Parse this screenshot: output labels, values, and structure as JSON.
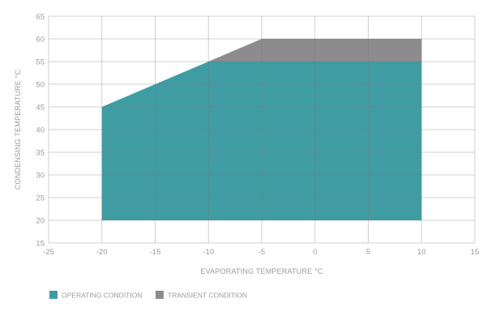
{
  "chart_data": {
    "type": "area",
    "xlabel": "EVAPORATING TEMPERATURE °C",
    "ylabel": "CONDENSING TEMPERATURE °C",
    "xlim": [
      -25,
      15
    ],
    "ylim": [
      15,
      65
    ],
    "x_ticks": [
      -25,
      -20,
      -15,
      -10,
      -5,
      0,
      5,
      10,
      15
    ],
    "y_ticks": [
      15,
      20,
      25,
      30,
      35,
      40,
      45,
      50,
      55,
      60,
      65
    ],
    "grid": true,
    "legend_position": "bottom-left",
    "series": [
      {
        "name": "TRANSIENT CONDITION",
        "color": "#8c8c8c",
        "polygon": [
          [
            -10,
            55
          ],
          [
            -5,
            60
          ],
          [
            10,
            60
          ],
          [
            10,
            55
          ]
        ]
      },
      {
        "name": "OPERATING CONDITION",
        "color": "#3f9ca3",
        "polygon": [
          [
            -20,
            20
          ],
          [
            -20,
            45
          ],
          [
            -10,
            55
          ],
          [
            10,
            55
          ],
          [
            10,
            20
          ]
        ]
      }
    ]
  }
}
